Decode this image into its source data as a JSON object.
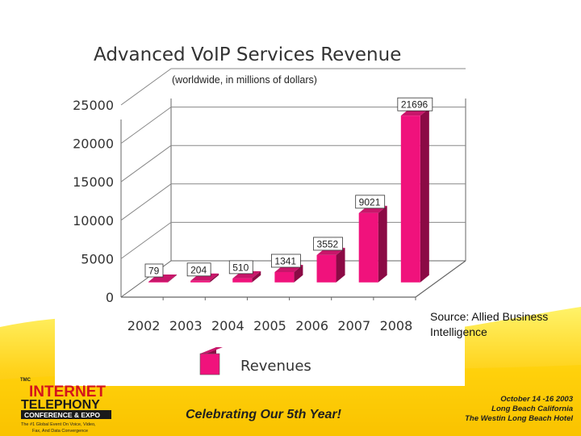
{
  "chart_data": {
    "type": "bar",
    "title": "Advanced VoIP Services Revenue",
    "subtitle": "(worldwide, in millions of dollars)",
    "categories": [
      "2002",
      "2003",
      "2004",
      "2005",
      "2006",
      "2007",
      "2008"
    ],
    "series": [
      {
        "name": "Revenues",
        "values": [
          79,
          204,
          510,
          1341,
          3552,
          9021,
          21696
        ]
      }
    ],
    "y_ticks": [
      "0",
      "5000",
      "10000",
      "15000",
      "20000",
      "25000"
    ],
    "ylim": [
      0,
      25000
    ],
    "grid": true,
    "legend": "bottom",
    "colors": {
      "bar_front": "#f0127c",
      "bar_side": "#8b0a45",
      "bar_top": "#c8166a"
    }
  },
  "source_lines": [
    "Source: Allied Business",
    "Intelligence"
  ],
  "banner": {
    "logo_small": "TMC",
    "logo_line1": "INTERNET",
    "logo_line2": "TELEPHONY",
    "logo_line3": "CONFERENCE & EXPO",
    "logo_tagline1": "The #1 Global Event On Voice, Video,",
    "logo_tagline2": "Fax, And Data Convergence",
    "center_text": "Celebrating Our 5th Year!",
    "right_line1": "October 14 -16 2003",
    "right_line2": "Long Beach California",
    "right_line3": "The Westin Long Beach Hotel"
  }
}
